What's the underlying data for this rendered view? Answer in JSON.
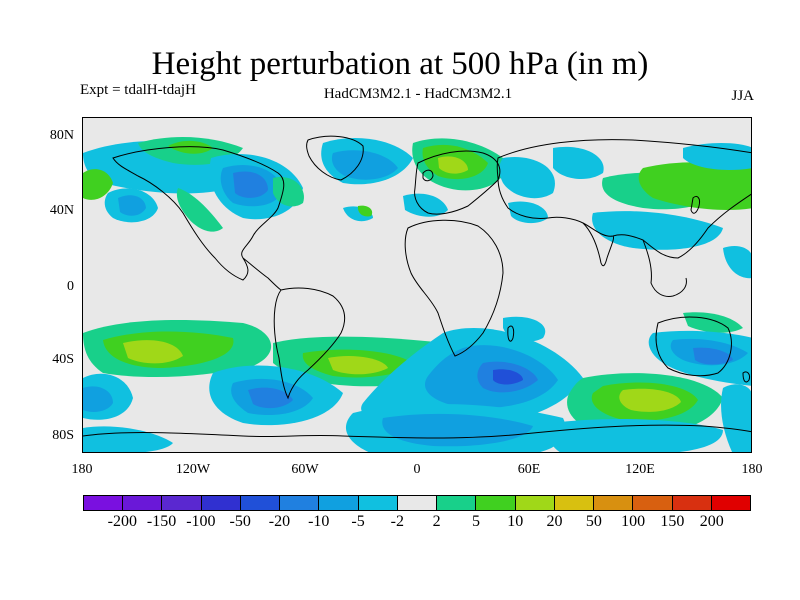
{
  "title": "Height perturbation at 500 hPa (in m)",
  "experiment": "Expt = tdalH-tdajH",
  "models": "HadCM3M2.1 - HadCM3M2.1",
  "season": "JJA",
  "lat_ticks": [
    "80N",
    "40N",
    "0",
    "40S",
    "80S"
  ],
  "lon_ticks": [
    "180",
    "120W",
    "60W",
    "0",
    "60E",
    "120E",
    "180"
  ],
  "colorbar": {
    "labels": [
      "-200",
      "-150",
      "-100",
      "-50",
      "-20",
      "-10",
      "-5",
      "-2",
      "2",
      "5",
      "10",
      "20",
      "50",
      "100",
      "150",
      "200"
    ],
    "colors": [
      "#7a10e0",
      "#6a18d8",
      "#5a28d0",
      "#3030d0",
      "#2050d8",
      "#2080e0",
      "#10a0e0",
      "#10c0e0",
      "#e8e8e8",
      "#18d08a",
      "#40d020",
      "#a0d818",
      "#d8c010",
      "#d89010",
      "#d86010",
      "#d83010",
      "#e00000"
    ]
  },
  "background_color": "#e8e8e8",
  "coast_color": "#000000"
}
